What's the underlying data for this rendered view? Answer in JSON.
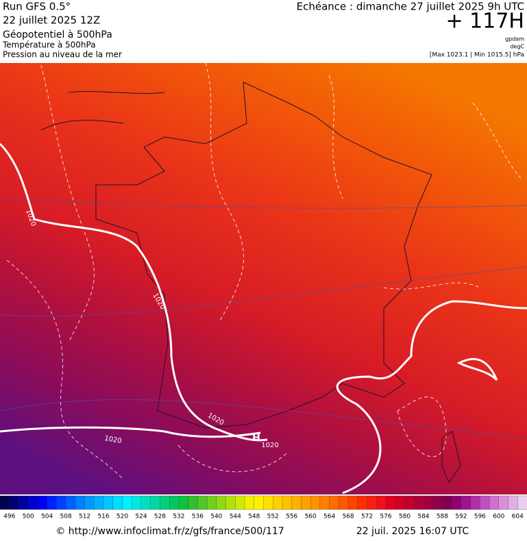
{
  "header": {
    "run": "Run GFS 0.5°",
    "run_date": "22 juillet 2025 12Z",
    "field_1": "Géopotentiel à 500hPa",
    "field_2": "Température à 500hPa",
    "field_3": "Pression au niveau de la mer",
    "valid_time": "Echéance : dimanche 27 juillet 2025 9h UTC",
    "lead": "+ 117H",
    "unit_1": "gpdam",
    "unit_2": "degC",
    "pressure_range": "[Max 1023.1 | Min 1015.5] hPa"
  },
  "map": {
    "isobar_labels": [
      "1020",
      "1020",
      "1020",
      "1020",
      "1020"
    ],
    "high_marker": "H"
  },
  "color_scale": {
    "labels": [
      496,
      500,
      504,
      508,
      512,
      516,
      520,
      524,
      528,
      532,
      536,
      540,
      544,
      548,
      552,
      556,
      560,
      564,
      568,
      572,
      576,
      580,
      584,
      588,
      592,
      596,
      600,
      604
    ],
    "colors": [
      "#000050",
      "#000078",
      "#0000a0",
      "#0000c8",
      "#0000f0",
      "#0020ff",
      "#0040ff",
      "#0060ff",
      "#0080ff",
      "#0098ff",
      "#00b0ff",
      "#00c8ff",
      "#00dcff",
      "#00f0ff",
      "#00e8e0",
      "#00e0c0",
      "#00d8a0",
      "#00d080",
      "#00c860",
      "#10c040",
      "#30c030",
      "#50c828",
      "#70d020",
      "#90d818",
      "#b0e010",
      "#d0e808",
      "#f0f000",
      "#fff000",
      "#ffe000",
      "#ffd000",
      "#ffc000",
      "#ffb000",
      "#ffa000",
      "#ff9000",
      "#ff8000",
      "#ff6c00",
      "#ff5800",
      "#ff4400",
      "#ff3000",
      "#f82010",
      "#f01018",
      "#e00020",
      "#d00028",
      "#c00030",
      "#b00038",
      "#a00040",
      "#900048",
      "#800050",
      "#900070",
      "#a01090",
      "#b030a8",
      "#c050c0",
      "#d070d0",
      "#d890dc",
      "#e0b0e4",
      "#e8d0ec"
    ]
  },
  "footer": {
    "url": "© http://www.infoclimat.fr/z/gfs/france/500/117",
    "timestamp": "22 juil. 2025 16:07 UTC"
  }
}
